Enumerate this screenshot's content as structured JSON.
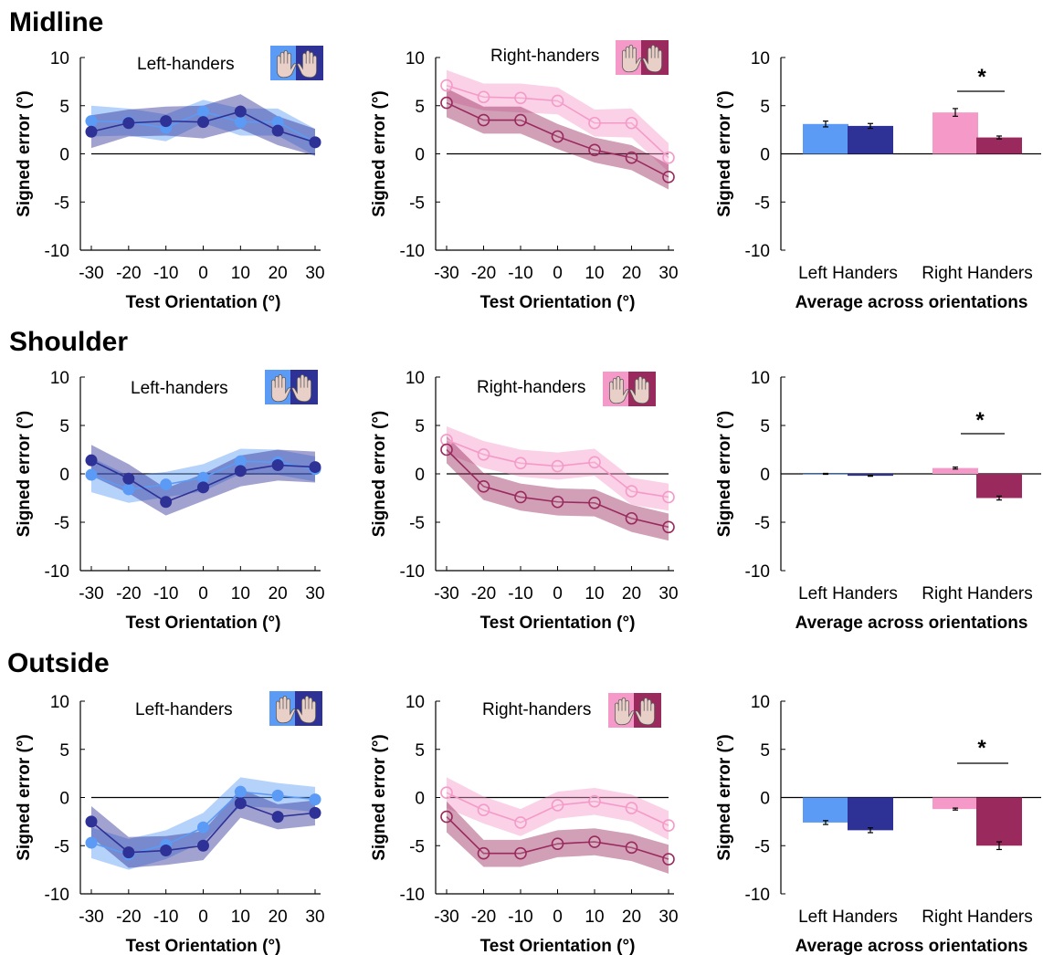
{
  "rows": [
    {
      "title": "Midline"
    },
    {
      "title": "Shoulder"
    },
    {
      "title": "Outside"
    }
  ],
  "colors": {
    "lh_light": "#5b9bf5",
    "lh_dark": "#2e3196",
    "rh_light": "#f59ac8",
    "rh_dark": "#9a2a5e",
    "skin": "#e8cfc8"
  },
  "legend_icons": [
    "left-hand-icon",
    "right-hand-icon"
  ],
  "chart_data": [
    {
      "type": "line",
      "panel": "midline-left-handers",
      "label": "Left-handers",
      "markers": "filled",
      "x": [
        -30,
        -20,
        -10,
        0,
        10,
        20,
        30
      ],
      "xlabel": "Test Orientation (°)",
      "ylabel": "Signed error (°)",
      "xticks": [
        "-30",
        "-20",
        "-10",
        "0",
        "10",
        "20",
        "30"
      ],
      "ylim": [
        -10,
        10
      ],
      "yticks": [
        "10",
        "5",
        "0",
        "-5",
        "-10"
      ],
      "series": [
        {
          "color": "#5b9bf5",
          "values": [
            3.4,
            3.3,
            2.7,
            4.4,
            3.3,
            3.3,
            1.2
          ],
          "band": [
            1.6,
            1.4,
            1.4,
            1.2,
            1.4,
            1.4,
            1.4
          ]
        },
        {
          "color": "#2e3196",
          "values": [
            2.3,
            3.2,
            3.4,
            3.3,
            4.4,
            2.4,
            1.2
          ],
          "band": [
            1.7,
            1.4,
            1.5,
            1.7,
            1.8,
            1.5,
            1.4
          ]
        }
      ]
    },
    {
      "type": "line",
      "panel": "midline-right-handers",
      "label": "Right-handers",
      "markers": "open",
      "x": [
        -30,
        -20,
        -10,
        0,
        10,
        20,
        30
      ],
      "xlabel": "Test Orientation (°)",
      "ylabel": "Signed error (°)",
      "xticks": [
        "-30",
        "-20",
        "-10",
        "0",
        "10",
        "20",
        "30"
      ],
      "ylim": [
        -10,
        10
      ],
      "yticks": [
        "10",
        "5",
        "0",
        "-5",
        "-10"
      ],
      "series": [
        {
          "color": "#f59ac8",
          "values": [
            7.1,
            5.9,
            5.8,
            5.5,
            3.2,
            3.2,
            -0.4
          ],
          "band": [
            1.6,
            1.4,
            1.5,
            1.4,
            1.4,
            1.5,
            1.5
          ]
        },
        {
          "color": "#9a2a5e",
          "values": [
            5.3,
            3.5,
            3.5,
            1.8,
            0.4,
            -0.4,
            -2.4
          ],
          "band": [
            1.5,
            1.4,
            1.4,
            1.3,
            1.3,
            1.3,
            1.3
          ]
        }
      ]
    },
    {
      "type": "bar",
      "panel": "midline-average",
      "categories": [
        "Left Handers",
        "Right Handers"
      ],
      "xlabel": "Average across orientations",
      "ylabel": "Signed error (°)",
      "ylim": [
        -10,
        10
      ],
      "yticks": [
        "10",
        "5",
        "0",
        "-5",
        "-10"
      ],
      "series": [
        {
          "color_pair": [
            "#5b9bf5",
            "#2e3196"
          ],
          "values": [
            3.1,
            2.9
          ],
          "err": [
            0.3,
            0.25
          ]
        },
        {
          "color_pair": [
            "#f59ac8",
            "#9a2a5e"
          ],
          "values": [
            4.3,
            1.7
          ],
          "err": [
            0.4,
            0.15
          ]
        }
      ],
      "significance": "*"
    },
    {
      "type": "line",
      "panel": "shoulder-left-handers",
      "label": "Left-handers",
      "markers": "filled",
      "x": [
        -30,
        -20,
        -10,
        0,
        10,
        20,
        30
      ],
      "xlabel": "Test Orientation (°)",
      "ylabel": "Signed error (°)",
      "xticks": [
        "-30",
        "-20",
        "-10",
        "0",
        "10",
        "20",
        "30"
      ],
      "ylim": [
        -10,
        10
      ],
      "yticks": [
        "10",
        "5",
        "0",
        "-5",
        "-10"
      ],
      "series": [
        {
          "color": "#5b9bf5",
          "values": [
            -0.1,
            -1.6,
            -1.1,
            -0.4,
            1.3,
            1.2,
            0.5
          ],
          "band": [
            1.8,
            1.4,
            1.3,
            1.4,
            1.3,
            1.3,
            1.3
          ]
        },
        {
          "color": "#2e3196",
          "values": [
            1.4,
            -0.5,
            -2.9,
            -1.4,
            0.3,
            0.9,
            0.7
          ],
          "band": [
            1.6,
            1.5,
            1.4,
            1.4,
            1.6,
            1.6,
            1.6
          ]
        }
      ]
    },
    {
      "type": "line",
      "panel": "shoulder-right-handers",
      "label": "Right-handers",
      "markers": "open",
      "x": [
        -30,
        -20,
        -10,
        0,
        10,
        20,
        30
      ],
      "xlabel": "Test Orientation (°)",
      "ylabel": "Signed error (°)",
      "xticks": [
        "-30",
        "-20",
        "-10",
        "0",
        "10",
        "20",
        "30"
      ],
      "ylim": [
        -10,
        10
      ],
      "yticks": [
        "10",
        "5",
        "0",
        "-5",
        "-10"
      ],
      "series": [
        {
          "color": "#f59ac8",
          "values": [
            3.5,
            2.0,
            1.1,
            0.8,
            1.2,
            -1.8,
            -2.4
          ],
          "band": [
            1.4,
            1.4,
            1.4,
            1.4,
            1.4,
            1.4,
            1.4
          ]
        },
        {
          "color": "#9a2a5e",
          "values": [
            2.5,
            -1.3,
            -2.4,
            -2.9,
            -3.0,
            -4.6,
            -5.5
          ],
          "band": [
            1.4,
            1.4,
            1.4,
            1.4,
            1.4,
            1.4,
            1.4
          ]
        }
      ]
    },
    {
      "type": "bar",
      "panel": "shoulder-average",
      "categories": [
        "Left Handers",
        "Right Handers"
      ],
      "xlabel": "Average across orientations",
      "ylabel": "Signed error (°)",
      "ylim": [
        -10,
        10
      ],
      "yticks": [
        "10",
        "5",
        "0",
        "-5",
        "-10"
      ],
      "series": [
        {
          "color_pair": [
            "#5b9bf5",
            "#2e3196"
          ],
          "values": [
            0.0,
            -0.2
          ],
          "err": [
            0.05,
            0.05
          ]
        },
        {
          "color_pair": [
            "#f59ac8",
            "#9a2a5e"
          ],
          "values": [
            0.6,
            -2.5
          ],
          "err": [
            0.1,
            0.2
          ]
        }
      ],
      "significance": "*"
    },
    {
      "type": "line",
      "panel": "outside-left-handers",
      "label": "Left-handers",
      "markers": "filled",
      "x": [
        -30,
        -20,
        -10,
        0,
        10,
        20,
        30
      ],
      "xlabel": "Test Orientation (°)",
      "ylabel": "Signed error (°)",
      "xticks": [
        "-30",
        "-20",
        "-10",
        "0",
        "10",
        "20",
        "30"
      ],
      "ylim": [
        -10,
        10
      ],
      "yticks": [
        "10",
        "5",
        "0",
        "-5",
        "-10"
      ],
      "series": [
        {
          "color": "#5b9bf5",
          "values": [
            -4.7,
            -5.9,
            -4.9,
            -3.1,
            0.6,
            0.2,
            -0.2
          ],
          "band": [
            1.6,
            1.6,
            1.5,
            1.5,
            1.5,
            1.3,
            1.3
          ]
        },
        {
          "color": "#2e3196",
          "values": [
            -2.5,
            -5.7,
            -5.5,
            -5.0,
            -0.6,
            -2.0,
            -1.6
          ],
          "band": [
            1.6,
            1.6,
            1.5,
            1.5,
            1.5,
            1.3,
            1.3
          ]
        }
      ]
    },
    {
      "type": "line",
      "panel": "outside-right-handers",
      "label": "Right-handers",
      "markers": "open",
      "x": [
        -30,
        -20,
        -10,
        0,
        10,
        20,
        30
      ],
      "xlabel": "Test Orientation (°)",
      "ylabel": "Signed error (°)",
      "xticks": [
        "-30",
        "-20",
        "-10",
        "0",
        "10",
        "20",
        "30"
      ],
      "ylim": [
        -10,
        10
      ],
      "yticks": [
        "10",
        "5",
        "0",
        "-5",
        "-10"
      ],
      "series": [
        {
          "color": "#f59ac8",
          "values": [
            0.5,
            -1.3,
            -2.6,
            -0.8,
            -0.4,
            -1.1,
            -2.9
          ],
          "band": [
            1.6,
            1.4,
            1.4,
            1.4,
            1.4,
            1.4,
            1.5
          ]
        },
        {
          "color": "#9a2a5e",
          "values": [
            -2.0,
            -5.8,
            -5.8,
            -4.8,
            -4.6,
            -5.2,
            -6.4
          ],
          "band": [
            1.6,
            1.4,
            1.4,
            1.4,
            1.4,
            1.4,
            1.5
          ]
        }
      ]
    },
    {
      "type": "bar",
      "panel": "outside-average",
      "categories": [
        "Left Handers",
        "Right Handers"
      ],
      "xlabel": "Average across orientations",
      "ylabel": "Signed error (°)",
      "ylim": [
        -10,
        10
      ],
      "yticks": [
        "10",
        "5",
        "0",
        "-5",
        "-10"
      ],
      "series": [
        {
          "color_pair": [
            "#5b9bf5",
            "#2e3196"
          ],
          "values": [
            -2.6,
            -3.4
          ],
          "err": [
            0.2,
            0.25
          ]
        },
        {
          "color_pair": [
            "#f59ac8",
            "#9a2a5e"
          ],
          "values": [
            -1.2,
            -5.0
          ],
          "err": [
            0.1,
            0.4
          ]
        }
      ],
      "significance": "*"
    }
  ]
}
